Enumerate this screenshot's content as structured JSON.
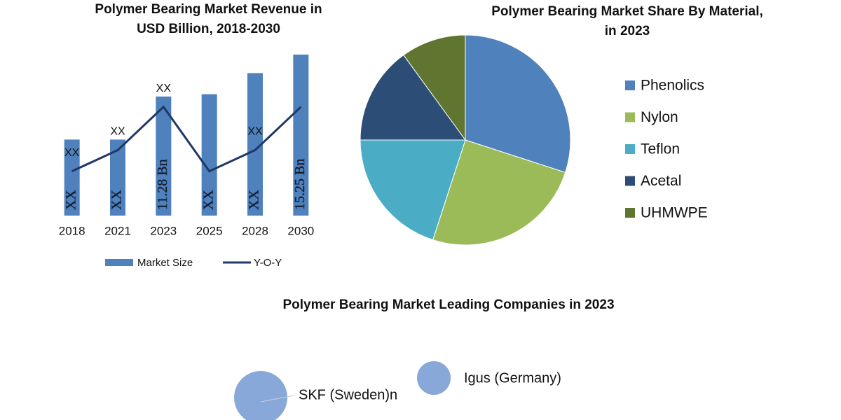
{
  "chart_data": [
    {
      "type": "bar-line",
      "title": "Polymer Bearing Market Revenue in USD Billion, 2018-2030",
      "categories": [
        "2018",
        "2021",
        "2023",
        "2025",
        "2028",
        "2030"
      ],
      "series": [
        {
          "name": "Market Size",
          "type": "bar",
          "color": "#4f81bd",
          "values": [
            7.2,
            7.2,
            11.28,
            11.5,
            13.5,
            15.25
          ],
          "value_labels": [
            "XX",
            "XX",
            "11.28 Bn",
            "XX",
            "XX",
            "15.25 Bn"
          ]
        },
        {
          "name": "Y-O-Y",
          "type": "line",
          "color": "#1f3864",
          "values": [
            4.2,
            6.2,
            10.3,
            4.2,
            6.2,
            10.3
          ],
          "value_labels": [
            "XX",
            "XX",
            "XX",
            null,
            "XX",
            null
          ]
        }
      ]
    },
    {
      "type": "pie",
      "title": "Polymer Bearing Market Share By Material, in 2023",
      "categories": [
        "Phenolics",
        "Nylon",
        "Teflon",
        "Acetal",
        "UHMWPE"
      ],
      "values": [
        30,
        25,
        20,
        15,
        10
      ],
      "colors": [
        "#4f81bd",
        "#9bbb59",
        "#4bacc6",
        "#2c4d75",
        "#5f7530"
      ]
    },
    {
      "type": "bubble",
      "title": "Polymer Bearing Market Leading Companies in 2023",
      "categories": [
        "SKF (Sweden)n",
        "Igus (Germany)"
      ],
      "values": [
        100,
        40
      ],
      "color": "#87a8d8"
    }
  ]
}
